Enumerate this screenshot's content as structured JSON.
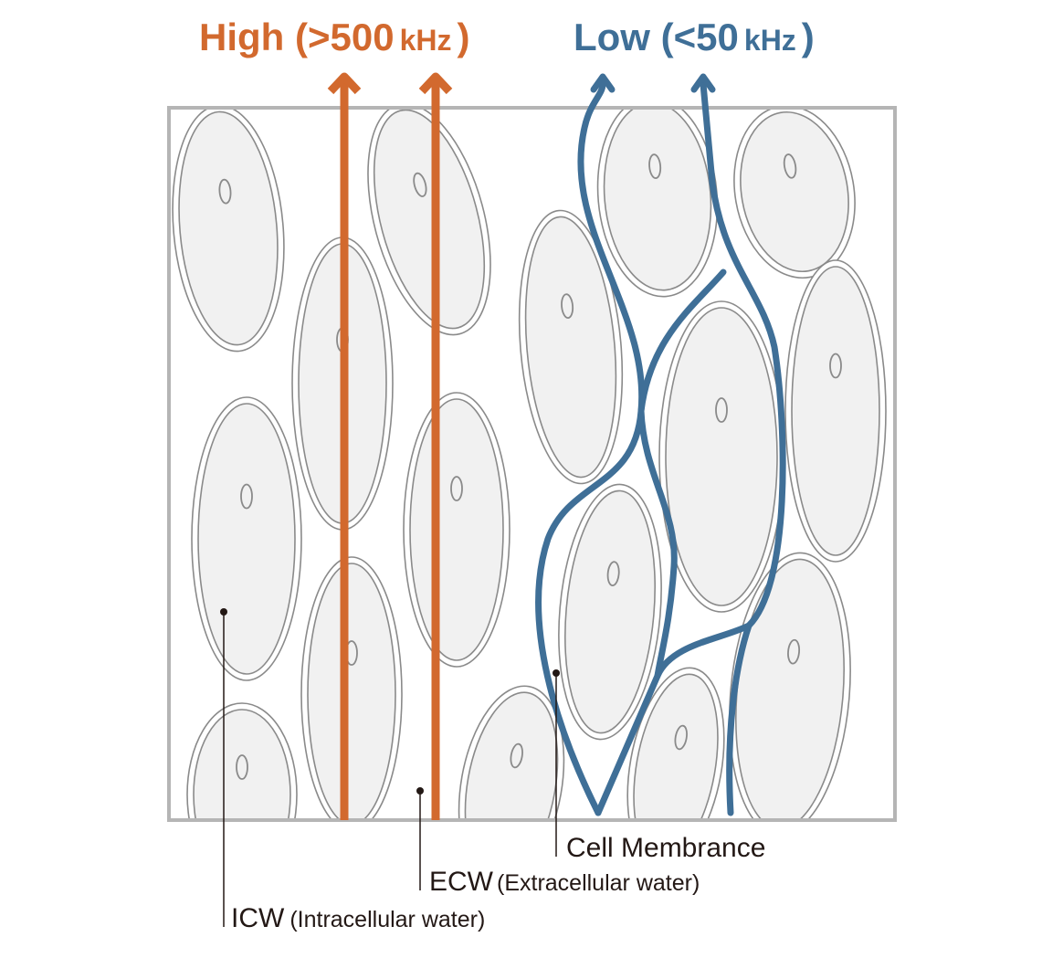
{
  "header": {
    "high": [
      "High (>500",
      "kHz",
      ")"
    ],
    "low": [
      "Low (<50",
      "kHz",
      ")"
    ]
  },
  "labels": {
    "membrane": "Cell Membrance",
    "ecw": [
      "ECW",
      "(Extracellular water)"
    ],
    "icw": [
      "ICW",
      "(Intracellular water)"
    ]
  }
}
